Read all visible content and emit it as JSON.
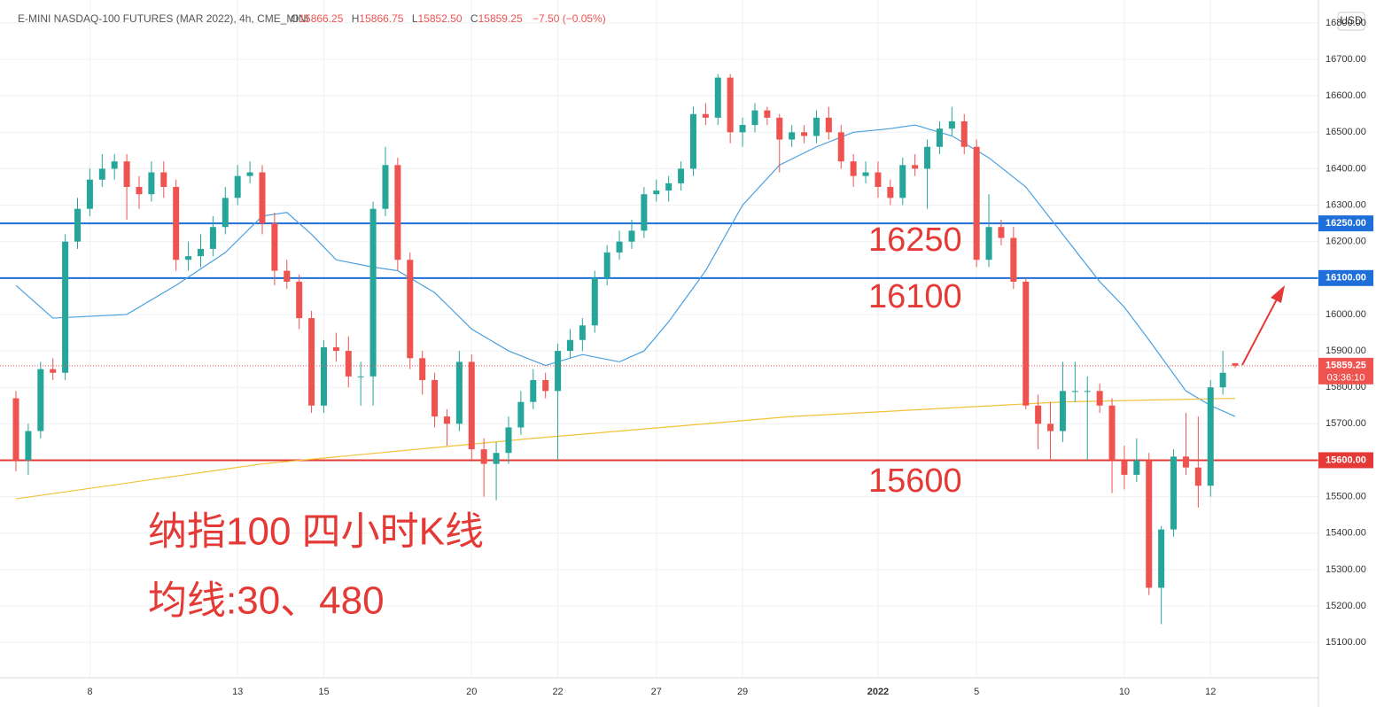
{
  "header": {
    "symbol": "E-MINI NASDAQ-100 FUTURES (MAR 2022), 4h, CME_MINI",
    "quote": [
      {
        "key": "O",
        "value": "15866.25"
      },
      {
        "key": "H",
        "value": "15866.75"
      },
      {
        "key": "L",
        "value": "15852.50"
      },
      {
        "key": "C",
        "value": "15859.25"
      }
    ],
    "change": "−7.50 (−0.05%)",
    "currency": "USD",
    "countdown": "03:36:10"
  },
  "annotations": [
    "16250",
    "16100",
    "15600",
    "纳指100 四小时K线",
    "均线:30、480"
  ],
  "chart_data": {
    "type": "candlestick",
    "up_color": "#26a69a",
    "down_color": "#ef5350",
    "grid": true,
    "ylim": [
      15003,
      16863
    ],
    "xlim": [
      -1.295,
      105.76
    ],
    "yticks": [
      {
        "value": 15100,
        "label": "15100.00"
      },
      {
        "value": 15200,
        "label": "15200.00"
      },
      {
        "value": 15300,
        "label": "15300.00"
      },
      {
        "value": 15400,
        "label": "15400.00"
      },
      {
        "value": 15500,
        "label": "15500.00"
      },
      {
        "value": 15600,
        "label": "15600.00"
      },
      {
        "value": 15700,
        "label": "15700.00"
      },
      {
        "value": 15800,
        "label": "15800.00"
      },
      {
        "value": 15900,
        "label": "15900.00"
      },
      {
        "value": 16000,
        "label": "16000.00"
      },
      {
        "value": 16100,
        "label": "16100.00"
      },
      {
        "value": 16200,
        "label": "16200.00"
      },
      {
        "value": 16300,
        "label": "16300.00"
      },
      {
        "value": 16400,
        "label": "16400.00"
      },
      {
        "value": 16500,
        "label": "16500.00"
      },
      {
        "value": 16600,
        "label": "16600.00"
      },
      {
        "value": 16700,
        "label": "16700.00"
      },
      {
        "value": 16800,
        "label": "16800.00"
      }
    ],
    "xticks": [
      {
        "value": 6,
        "label": "8"
      },
      {
        "value": 18,
        "label": "13"
      },
      {
        "value": 25,
        "label": "15"
      },
      {
        "value": 37,
        "label": "20"
      },
      {
        "value": 44,
        "label": "22"
      },
      {
        "value": 52,
        "label": "27"
      },
      {
        "value": 59,
        "label": "29"
      },
      {
        "value": 70,
        "label": "2022"
      },
      {
        "value": 78,
        "label": "5"
      },
      {
        "value": 90,
        "label": "10"
      },
      {
        "value": 97,
        "label": "12"
      }
    ],
    "hlines": [
      {
        "value": 16250,
        "label": "16250.00",
        "color": "#1e6fd9"
      },
      {
        "value": 16100,
        "label": "16100.00",
        "color": "#1e6fd9"
      },
      {
        "value": 15600,
        "label": "15600.00",
        "color": "#e53935"
      }
    ],
    "ohlc": [
      [
        15770,
        15790,
        15570,
        15600
      ],
      [
        15600,
        15700,
        15560,
        15680
      ],
      [
        15680,
        15870,
        15660,
        15850
      ],
      [
        15850,
        15880,
        15820,
        15840
      ],
      [
        15840,
        16220,
        15820,
        16200
      ],
      [
        16200,
        16320,
        16180,
        16290
      ],
      [
        16290,
        16400,
        16270,
        16370
      ],
      [
        16370,
        16440,
        16350,
        16400
      ],
      [
        16400,
        16440,
        16370,
        16420
      ],
      [
        16420,
        16440,
        16260,
        16350
      ],
      [
        16350,
        16380,
        16290,
        16330
      ],
      [
        16330,
        16420,
        16310,
        16390
      ],
      [
        16390,
        16420,
        16320,
        16350
      ],
      [
        16350,
        16370,
        16120,
        16150
      ],
      [
        16150,
        16200,
        16120,
        16160
      ],
      [
        16160,
        16220,
        16130,
        16180
      ],
      [
        16180,
        16270,
        16160,
        16240
      ],
      [
        16240,
        16350,
        16220,
        16320
      ],
      [
        16320,
        16410,
        16300,
        16380
      ],
      [
        16380,
        16420,
        16360,
        16390
      ],
      [
        16390,
        16410,
        16220,
        16250
      ],
      [
        16250,
        16280,
        16080,
        16120
      ],
      [
        16120,
        16150,
        16070,
        16090
      ],
      [
        16090,
        16110,
        15960,
        15990
      ],
      [
        15990,
        16010,
        15730,
        15750
      ],
      [
        15750,
        15930,
        15730,
        15910
      ],
      [
        15910,
        15950,
        15870,
        15900
      ],
      [
        15900,
        15940,
        15800,
        15830
      ],
      [
        15830,
        15870,
        15750,
        15830
      ],
      [
        15830,
        16310,
        15750,
        16290
      ],
      [
        16290,
        16460,
        16270,
        16410
      ],
      [
        16410,
        16430,
        16120,
        16150
      ],
      [
        16150,
        16170,
        15850,
        15880
      ],
      [
        15880,
        15900,
        15780,
        15820
      ],
      [
        15820,
        15840,
        15690,
        15720
      ],
      [
        15720,
        15740,
        15640,
        15700
      ],
      [
        15700,
        15900,
        15680,
        15870
      ],
      [
        15870,
        15890,
        15600,
        15630
      ],
      [
        15630,
        15660,
        15500,
        15590
      ],
      [
        15590,
        15650,
        15490,
        15620
      ],
      [
        15620,
        15720,
        15590,
        15690
      ],
      [
        15690,
        15790,
        15670,
        15760
      ],
      [
        15760,
        15850,
        15740,
        15820
      ],
      [
        15820,
        15840,
        15770,
        15790
      ],
      [
        15790,
        15920,
        15600,
        15900
      ],
      [
        15900,
        15960,
        15880,
        15930
      ],
      [
        15930,
        15990,
        15900,
        15970
      ],
      [
        15970,
        16120,
        15950,
        16100
      ],
      [
        16100,
        16190,
        16080,
        16170
      ],
      [
        16170,
        16230,
        16150,
        16200
      ],
      [
        16200,
        16260,
        16180,
        16230
      ],
      [
        16230,
        16350,
        16210,
        16330
      ],
      [
        16330,
        16370,
        16310,
        16340
      ],
      [
        16340,
        16380,
        16310,
        16360
      ],
      [
        16360,
        16420,
        16340,
        16400
      ],
      [
        16400,
        16570,
        16380,
        16550
      ],
      [
        16550,
        16580,
        16520,
        16540
      ],
      [
        16540,
        16660,
        16520,
        16650
      ],
      [
        16650,
        16660,
        16470,
        16500
      ],
      [
        16500,
        16540,
        16460,
        16520
      ],
      [
        16520,
        16580,
        16500,
        16560
      ],
      [
        16560,
        16570,
        16520,
        16540
      ],
      [
        16540,
        16550,
        16390,
        16480
      ],
      [
        16480,
        16520,
        16460,
        16500
      ],
      [
        16500,
        16520,
        16470,
        16490
      ],
      [
        16490,
        16560,
        16470,
        16540
      ],
      [
        16540,
        16570,
        16480,
        16500
      ],
      [
        16500,
        16520,
        16400,
        16420
      ],
      [
        16420,
        16440,
        16350,
        16380
      ],
      [
        16380,
        16420,
        16360,
        16390
      ],
      [
        16390,
        16420,
        16320,
        16350
      ],
      [
        16350,
        16370,
        16300,
        16320
      ],
      [
        16320,
        16430,
        16300,
        16410
      ],
      [
        16410,
        16440,
        16380,
        16400
      ],
      [
        16400,
        16480,
        16290,
        16460
      ],
      [
        16460,
        16530,
        16440,
        16510
      ],
      [
        16510,
        16570,
        16490,
        16530
      ],
      [
        16530,
        16550,
        16440,
        16460
      ],
      [
        16460,
        16480,
        16130,
        16150
      ],
      [
        16150,
        16330,
        16130,
        16240
      ],
      [
        16240,
        16260,
        16190,
        16210
      ],
      [
        16210,
        16240,
        16070,
        16090
      ],
      [
        16090,
        16100,
        15740,
        15750
      ],
      [
        15750,
        15780,
        15630,
        15700
      ],
      [
        15700,
        15760,
        15600,
        15680
      ],
      [
        15680,
        15870,
        15650,
        15790
      ],
      [
        15790,
        15870,
        15760,
        15790
      ],
      [
        15790,
        15830,
        15600,
        15790
      ],
      [
        15790,
        15810,
        15730,
        15750
      ],
      [
        15750,
        15770,
        15510,
        15600
      ],
      [
        15600,
        15640,
        15520,
        15560
      ],
      [
        15560,
        15660,
        15540,
        15600
      ],
      [
        15600,
        15620,
        15230,
        15250
      ],
      [
        15250,
        15420,
        15150,
        15410
      ],
      [
        15410,
        15630,
        15390,
        15610
      ],
      [
        15610,
        15730,
        15560,
        15580
      ],
      [
        15580,
        15720,
        15470,
        15530
      ],
      [
        15530,
        15820,
        15500,
        15800
      ],
      [
        15800,
        15900,
        15780,
        15840
      ],
      [
        15866.25,
        15866.75,
        15852.5,
        15859.25
      ]
    ],
    "lines": [
      {
        "color": "#4a9fe0",
        "x": [
          0,
          3,
          9,
          13,
          17,
          20,
          22,
          24,
          26,
          29,
          31,
          34,
          37,
          40,
          43,
          46,
          49,
          51,
          53,
          56,
          59,
          62,
          65,
          68,
          71,
          73,
          76,
          79,
          82,
          85,
          88,
          90,
          92,
          95,
          97,
          99
        ],
        "values": [
          16080,
          15990,
          16000,
          16080,
          16170,
          16270,
          16280,
          16220,
          16150,
          16130,
          16120,
          16060,
          15960,
          15900,
          15860,
          15890,
          15870,
          15900,
          15980,
          16120,
          16300,
          16410,
          16460,
          16500,
          16510,
          16520,
          16490,
          16430,
          16350,
          16220,
          16090,
          16020,
          15930,
          15790,
          15750,
          15720
        ]
      },
      {
        "color": "#f2c23a",
        "x": [
          0,
          20,
          42,
          63,
          85,
          99
        ],
        "values": [
          15494,
          15590,
          15660,
          15720,
          15760,
          15770
        ]
      }
    ]
  }
}
